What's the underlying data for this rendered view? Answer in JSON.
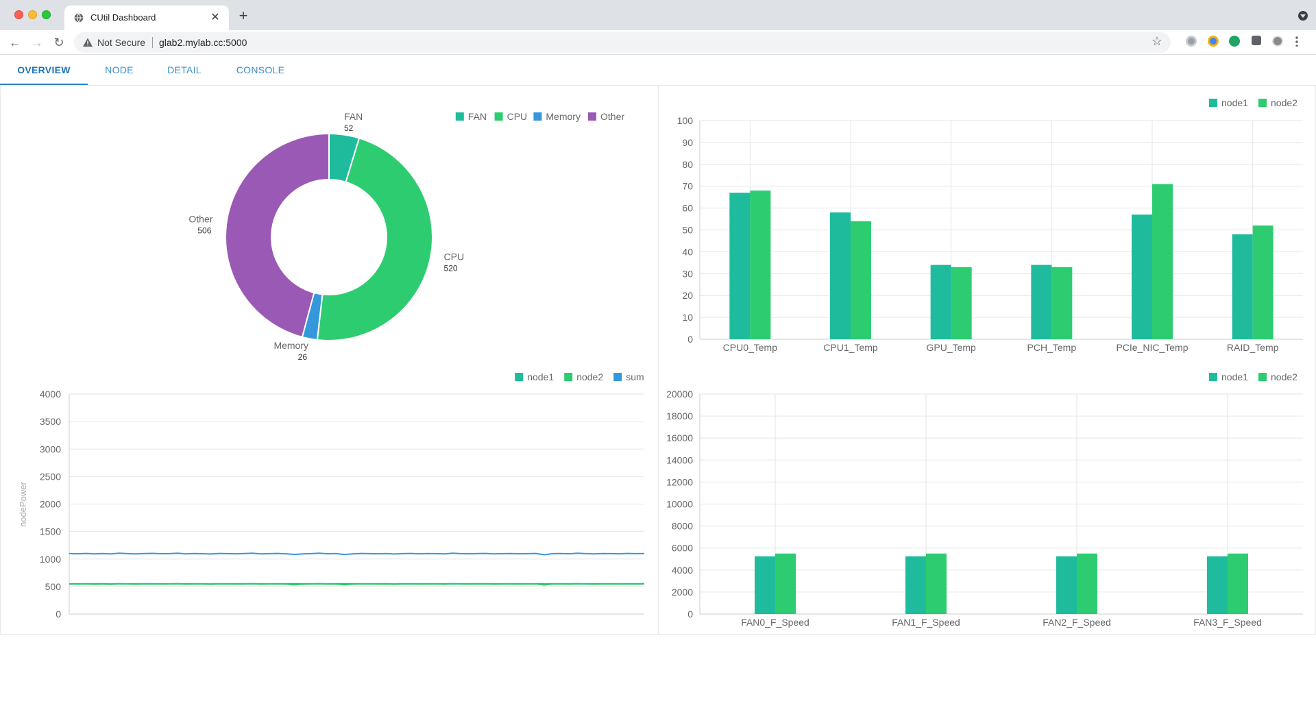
{
  "browser": {
    "tab_title": "CUtil Dashboard",
    "security_label": "Not Secure",
    "url": "glab2.mylab.cc:5000"
  },
  "app_tabs": [
    {
      "label": "OVERVIEW",
      "active": true
    },
    {
      "label": "NODE",
      "active": false
    },
    {
      "label": "DETAIL",
      "active": false
    },
    {
      "label": "CONSOLE",
      "active": false
    }
  ],
  "colors": {
    "teal": "#1ebc9c",
    "green": "#2ecc71",
    "blue": "#3498db",
    "purple": "#9b59b6",
    "grid": "#e6e6e6",
    "axis_text": "#666666"
  },
  "chart_data": [
    {
      "type": "pie",
      "donut": true,
      "legend_position": "top-right",
      "slices": [
        {
          "label": "FAN",
          "value": 52,
          "color": "#1ebc9c"
        },
        {
          "label": "CPU",
          "value": 520,
          "color": "#2ecc71"
        },
        {
          "label": "Memory",
          "value": 26,
          "color": "#3498db"
        },
        {
          "label": "Other",
          "value": 506,
          "color": "#9b59b6"
        }
      ]
    },
    {
      "type": "bar",
      "legend_position": "top-right",
      "categories": [
        "CPU0_Temp",
        "CPU1_Temp",
        "GPU_Temp",
        "PCH_Temp",
        "PCIe_NIC_Temp",
        "RAID_Temp"
      ],
      "series": [
        {
          "name": "node1",
          "color": "#1ebc9c",
          "values": [
            67,
            58,
            34,
            34,
            57,
            48
          ]
        },
        {
          "name": "node2",
          "color": "#2ecc71",
          "values": [
            68,
            54,
            33,
            33,
            71,
            52
          ]
        }
      ],
      "ylim": [
        0,
        100
      ],
      "yticks": [
        0,
        10,
        20,
        30,
        40,
        50,
        60,
        70,
        80,
        90,
        100
      ],
      "grid": true
    },
    {
      "type": "line",
      "legend_position": "top-right",
      "ylabel": "nodePower",
      "ylim": [
        0,
        4000
      ],
      "yticks": [
        0,
        500,
        1000,
        1500,
        2000,
        2500,
        3000,
        3500,
        4000
      ],
      "series": [
        {
          "name": "node1",
          "color": "#1ebc9c",
          "values": [
            550,
            548,
            552,
            549,
            551,
            547,
            553,
            550,
            548,
            551,
            552,
            549,
            550,
            553,
            548,
            551,
            550,
            547,
            552,
            550,
            549,
            551,
            553,
            548,
            550,
            552,
            549,
            551,
            548,
            550,
            553,
            549,
            551,
            550,
            548,
            552,
            550,
            549,
            551,
            547,
            550,
            552,
            549,
            551,
            550,
            548,
            553,
            550,
            549,
            551,
            552,
            548,
            550,
            551,
            549,
            550,
            552,
            547,
            550,
            551,
            549,
            553,
            550,
            548,
            551,
            550,
            549,
            552,
            550,
            551
          ]
        },
        {
          "name": "node2",
          "color": "#2ecc71",
          "values": [
            545,
            543,
            547,
            541,
            546,
            540,
            548,
            544,
            542,
            546,
            547,
            543,
            545,
            548,
            542,
            546,
            544,
            541,
            547,
            545,
            543,
            546,
            548,
            542,
            545,
            547,
            543,
            530,
            542,
            545,
            548,
            543,
            546,
            530,
            542,
            547,
            545,
            543,
            546,
            541,
            545,
            547,
            543,
            546,
            545,
            542,
            548,
            545,
            543,
            546,
            547,
            542,
            545,
            546,
            543,
            545,
            547,
            528,
            545,
            546,
            543,
            548,
            545,
            542,
            546,
            545,
            543,
            547,
            545,
            546
          ]
        },
        {
          "name": "sum",
          "color": "#3498db",
          "values": [
            1100,
            1095,
            1101,
            1094,
            1100,
            1093,
            1105,
            1098,
            1094,
            1100,
            1103,
            1096,
            1098,
            1105,
            1094,
            1100,
            1097,
            1092,
            1102,
            1098,
            1095,
            1100,
            1105,
            1093,
            1098,
            1102,
            1095,
            1084,
            1093,
            1098,
            1105,
            1095,
            1100,
            1083,
            1093,
            1102,
            1098,
            1095,
            1100,
            1091,
            1098,
            1102,
            1095,
            1100,
            1098,
            1093,
            1105,
            1098,
            1095,
            1100,
            1102,
            1093,
            1098,
            1100,
            1095,
            1098,
            1102,
            1078,
            1098,
            1100,
            1095,
            1105,
            1098,
            1093,
            1100,
            1098,
            1095,
            1102,
            1098,
            1100
          ]
        }
      ],
      "grid": true
    },
    {
      "type": "bar",
      "legend_position": "top-right",
      "categories": [
        "FAN0_F_Speed",
        "FAN1_F_Speed",
        "FAN2_F_Speed",
        "FAN3_F_Speed"
      ],
      "series": [
        {
          "name": "node1",
          "color": "#1ebc9c",
          "values": [
            5250,
            5250,
            5250,
            5250
          ]
        },
        {
          "name": "node2",
          "color": "#2ecc71",
          "values": [
            5500,
            5500,
            5500,
            5500
          ]
        }
      ],
      "ylim": [
        0,
        20000
      ],
      "yticks": [
        0,
        2000,
        4000,
        6000,
        8000,
        10000,
        12000,
        14000,
        16000,
        18000,
        20000
      ],
      "grid": true
    }
  ]
}
